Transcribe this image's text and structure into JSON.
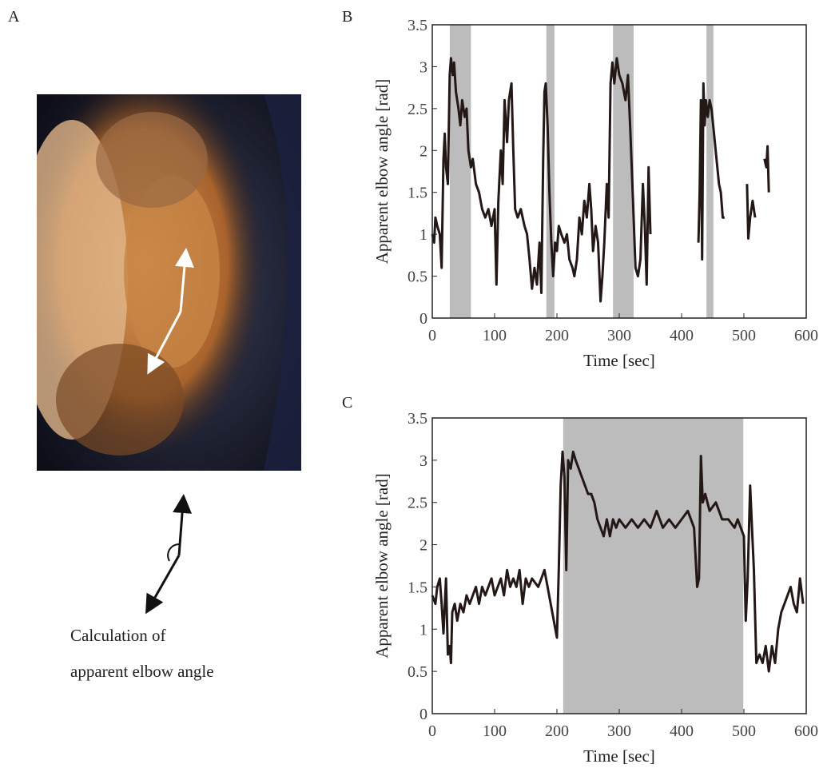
{
  "panel_labels": [
    "A",
    "B",
    "C"
  ],
  "caption": [
    "Calculation of",
    "apparent elbow angle"
  ],
  "chart_data": [
    {
      "type": "line",
      "xlabel": "Time [sec]",
      "ylabel": "Apparent elbow angle [rad]",
      "xlim": [
        0,
        600
      ],
      "ylim": [
        0,
        3.5
      ],
      "xticks": [
        0,
        100,
        200,
        300,
        400,
        500,
        600
      ],
      "yticks": [
        0,
        0.5,
        1,
        1.5,
        2,
        2.5,
        3,
        3.5
      ],
      "color": "#231815",
      "shade_color": "#bcbcbc",
      "shaded": [
        [
          28,
          62
        ],
        [
          183,
          196
        ],
        [
          290,
          323
        ],
        [
          440,
          451
        ]
      ],
      "x": [
        0,
        3,
        5,
        8,
        12,
        15,
        18,
        20,
        22,
        25,
        28,
        30,
        33,
        35,
        38,
        42,
        45,
        48,
        52,
        55,
        58,
        62,
        65,
        70,
        75,
        80,
        85,
        90,
        95,
        100,
        103,
        106,
        110,
        113,
        116,
        120,
        123,
        127,
        130,
        133,
        137,
        142,
        148,
        152,
        156,
        160,
        164,
        168,
        172,
        175,
        178,
        180,
        182,
        185,
        188,
        191,
        194,
        197,
        200,
        203,
        207,
        212,
        216,
        220,
        225,
        228,
        232,
        236,
        240,
        244,
        248,
        252,
        255,
        258,
        262,
        266,
        270,
        273,
        276,
        280,
        283,
        286,
        289,
        292,
        296,
        300,
        305,
        310,
        314,
        318,
        322,
        326,
        330,
        334,
        338,
        341,
        344,
        347,
        350,
        390,
        427,
        429,
        431,
        433,
        435,
        437,
        439,
        442,
        445,
        448,
        452,
        456,
        460,
        463,
        466,
        469,
        490,
        505,
        507,
        510,
        514,
        518,
        525,
        533,
        536,
        538,
        540
      ],
      "values": [
        1.0,
        0.9,
        1.2,
        1.1,
        1.0,
        0.6,
        1.9,
        2.2,
        1.8,
        1.6,
        2.9,
        3.1,
        2.9,
        3.05,
        2.7,
        2.5,
        2.3,
        2.6,
        2.4,
        2.5,
        2.0,
        1.8,
        1.9,
        1.6,
        1.5,
        1.3,
        1.2,
        1.3,
        1.1,
        1.3,
        0.4,
        1.4,
        2.0,
        1.6,
        2.6,
        2.1,
        2.6,
        2.8,
        2.0,
        1.3,
        1.2,
        1.3,
        1.1,
        1.0,
        0.7,
        0.35,
        0.6,
        0.4,
        0.9,
        0.3,
        1.9,
        2.7,
        2.8,
        2.3,
        1.5,
        0.9,
        0.5,
        0.9,
        0.8,
        1.1,
        1.0,
        0.9,
        1.0,
        0.7,
        0.6,
        0.5,
        0.7,
        1.2,
        1.0,
        1.4,
        1.2,
        1.6,
        1.3,
        0.8,
        1.1,
        0.9,
        0.2,
        0.5,
        0.9,
        1.6,
        1.2,
        2.8,
        3.05,
        2.8,
        3.1,
        2.9,
        2.8,
        2.6,
        2.9,
        2.2,
        1.4,
        0.6,
        0.5,
        0.7,
        1.6,
        1.1,
        0.4,
        1.8,
        1.0,
        null,
        0.9,
        1.5,
        2.6,
        0.7,
        2.8,
        2.3,
        2.6,
        2.4,
        2.6,
        2.5,
        2.2,
        1.9,
        1.6,
        1.5,
        1.2,
        1.2,
        null,
        1.6,
        0.95,
        1.2,
        1.4,
        1.2,
        null,
        1.9,
        1.8,
        2.05,
        1.5
      ]
    },
    {
      "type": "line",
      "xlabel": "Time [sec]",
      "ylabel": "Apparent elbow angle [rad]",
      "xlim": [
        0,
        600
      ],
      "ylim": [
        0,
        3.5
      ],
      "xticks": [
        0,
        100,
        200,
        300,
        400,
        500,
        600
      ],
      "yticks": [
        0,
        0.5,
        1,
        1.5,
        2,
        2.5,
        3,
        3.5
      ],
      "color": "#231815",
      "shade_color": "#bcbcbc",
      "shaded": [
        [
          210,
          499
        ]
      ],
      "x": [
        0,
        5,
        8,
        12,
        15,
        18,
        22,
        25,
        28,
        30,
        32,
        36,
        40,
        45,
        50,
        55,
        60,
        65,
        70,
        75,
        80,
        85,
        90,
        95,
        100,
        105,
        110,
        115,
        120,
        125,
        130,
        135,
        140,
        145,
        150,
        155,
        160,
        165,
        170,
        175,
        180,
        185,
        190,
        195,
        200,
        203,
        206,
        209,
        212,
        215,
        218,
        222,
        226,
        230,
        235,
        240,
        245,
        250,
        255,
        260,
        265,
        270,
        275,
        280,
        285,
        290,
        295,
        300,
        310,
        320,
        330,
        340,
        350,
        360,
        370,
        380,
        390,
        400,
        410,
        420,
        425,
        428,
        431,
        434,
        438,
        445,
        455,
        465,
        475,
        485,
        490,
        495,
        500,
        503,
        506,
        510,
        513,
        516,
        520,
        525,
        530,
        535,
        540,
        545,
        550,
        555,
        560,
        565,
        570,
        575,
        580,
        585,
        590,
        595
      ],
      "values": [
        1.4,
        1.3,
        1.5,
        1.6,
        1.3,
        0.95,
        1.6,
        0.7,
        0.8,
        0.6,
        1.2,
        1.3,
        1.1,
        1.3,
        1.2,
        1.4,
        1.3,
        1.4,
        1.5,
        1.3,
        1.5,
        1.4,
        1.5,
        1.6,
        1.4,
        1.5,
        1.6,
        1.4,
        1.7,
        1.5,
        1.6,
        1.5,
        1.7,
        1.3,
        1.6,
        1.5,
        1.6,
        1.55,
        1.5,
        1.6,
        1.7,
        1.5,
        1.3,
        1.1,
        0.9,
        1.7,
        2.7,
        3.1,
        2.8,
        1.7,
        3.0,
        2.9,
        3.1,
        3.0,
        2.9,
        2.8,
        2.7,
        2.6,
        2.6,
        2.5,
        2.3,
        2.2,
        2.1,
        2.3,
        2.1,
        2.3,
        2.2,
        2.3,
        2.2,
        2.3,
        2.2,
        2.3,
        2.2,
        2.4,
        2.2,
        2.3,
        2.2,
        2.3,
        2.4,
        2.2,
        1.5,
        1.6,
        3.05,
        2.5,
        2.6,
        2.4,
        2.5,
        2.3,
        2.3,
        2.2,
        2.3,
        2.2,
        2.1,
        1.1,
        1.6,
        2.7,
        2.2,
        1.7,
        0.6,
        0.7,
        0.6,
        0.8,
        0.5,
        0.8,
        0.6,
        1.0,
        1.2,
        1.3,
        1.4,
        1.5,
        1.3,
        1.2,
        1.6,
        1.3
      ]
    }
  ]
}
